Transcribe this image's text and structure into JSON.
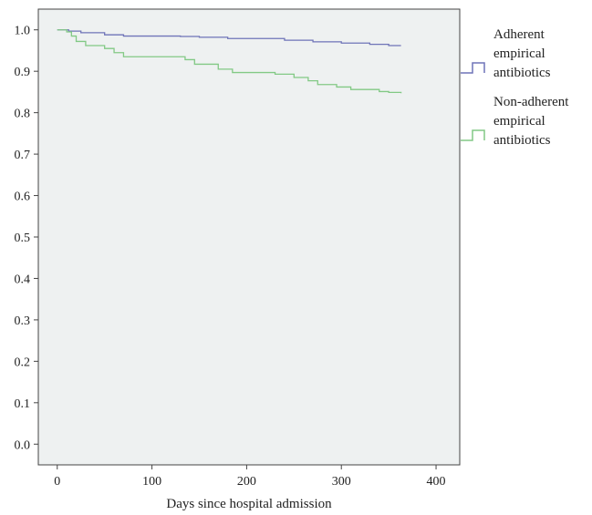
{
  "chart_data": {
    "type": "line",
    "step": true,
    "title": "",
    "xlabel": "Days since hospital admission",
    "ylabel": "",
    "xlim": [
      -20,
      425
    ],
    "ylim": [
      -0.05,
      1.05
    ],
    "x_ticks": [
      0,
      100,
      200,
      300,
      400
    ],
    "y_ticks": [
      0.0,
      0.1,
      0.2,
      0.3,
      0.4,
      0.5,
      0.6,
      0.7,
      0.8,
      0.9,
      1.0
    ],
    "x_tick_labels": [
      "0",
      "100",
      "200",
      "300",
      "400"
    ],
    "y_tick_labels": [
      "0.0",
      "0.1",
      "0.2",
      "0.3",
      "0.4",
      "0.5",
      "0.6",
      "0.7",
      "0.8",
      "0.9",
      "1.0"
    ],
    "grid": false,
    "legend_position": "right",
    "background_color": "#eef1f1",
    "series": [
      {
        "name": "Adherent empirical antibiotics",
        "legend_lines": [
          "Adherent",
          "empirical",
          "antibiotics"
        ],
        "color": "#6f74b8",
        "points": [
          [
            0,
            1.0
          ],
          [
            12,
            0.997
          ],
          [
            25,
            0.993
          ],
          [
            50,
            0.988
          ],
          [
            70,
            0.985
          ],
          [
            130,
            0.984
          ],
          [
            150,
            0.982
          ],
          [
            180,
            0.979
          ],
          [
            240,
            0.975
          ],
          [
            270,
            0.971
          ],
          [
            300,
            0.968
          ],
          [
            330,
            0.965
          ],
          [
            350,
            0.962
          ],
          [
            363,
            0.962
          ]
        ]
      },
      {
        "name": "Non-adherent empirical antibiotics",
        "legend_lines": [
          "Non-adherent",
          "empirical",
          "antibiotics"
        ],
        "color": "#82c985",
        "points": [
          [
            0,
            1.0
          ],
          [
            10,
            0.995
          ],
          [
            15,
            0.985
          ],
          [
            20,
            0.972
          ],
          [
            30,
            0.962
          ],
          [
            50,
            0.955
          ],
          [
            60,
            0.945
          ],
          [
            70,
            0.935
          ],
          [
            135,
            0.928
          ],
          [
            145,
            0.917
          ],
          [
            170,
            0.905
          ],
          [
            185,
            0.897
          ],
          [
            230,
            0.893
          ],
          [
            250,
            0.885
          ],
          [
            265,
            0.877
          ],
          [
            275,
            0.868
          ],
          [
            295,
            0.862
          ],
          [
            310,
            0.856
          ],
          [
            340,
            0.851
          ],
          [
            350,
            0.849
          ],
          [
            363,
            0.847
          ]
        ]
      }
    ]
  }
}
